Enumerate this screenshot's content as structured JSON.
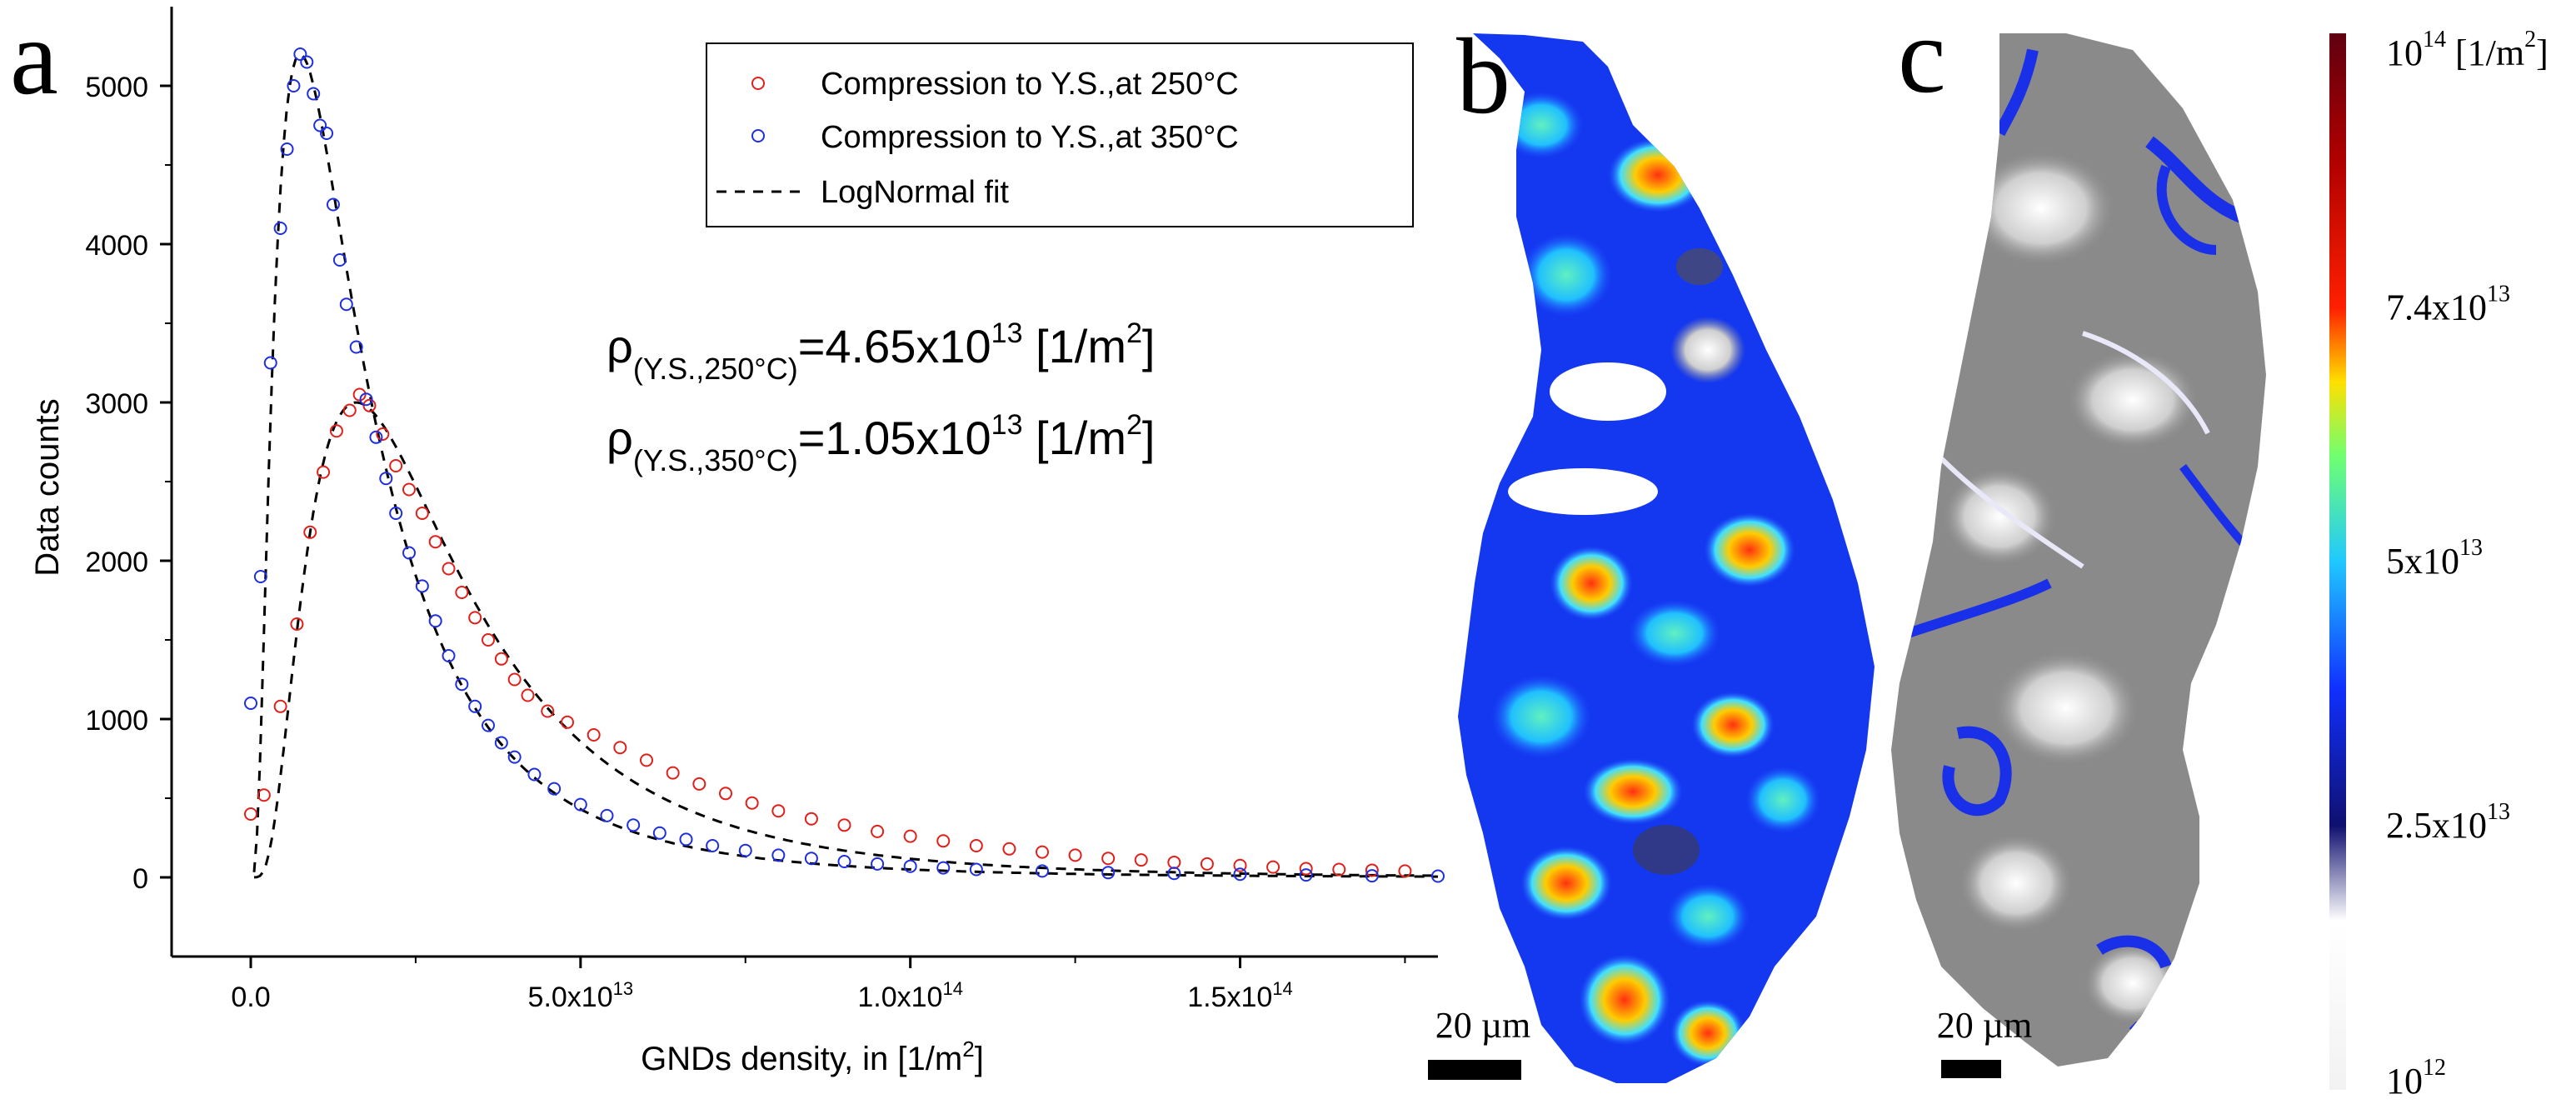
{
  "panels": {
    "a": {
      "letter": "a"
    },
    "b": {
      "letter": "b",
      "scalebar_label": "20 µm"
    },
    "c": {
      "letter": "c",
      "scalebar_label": "20 µm"
    }
  },
  "colors": {
    "red_series": "#e0201a",
    "blue_series": "#1f2fe0",
    "fit_line": "#000000"
  },
  "annotations": {
    "rho_250": {
      "symbol": "ρ",
      "sub": "(Y.S.,250°C)",
      "eq": "=4.65x10",
      "exp": "13",
      "unit1": " [1/m",
      "unit_exp": "2",
      "unit2": "]"
    },
    "rho_350": {
      "symbol": "ρ",
      "sub": "(Y.S.,350°C)",
      "eq": "=1.05x10",
      "exp": "13",
      "unit1": " [1/m",
      "unit_exp": "2",
      "unit2": "]"
    }
  },
  "colorbar": {
    "labels": [
      {
        "base": "10",
        "exp": "14",
        "suffix": " [1/m",
        "suffix_exp": "2",
        "suffix_end": "]",
        "fraction": 1.0
      },
      {
        "base": "7.4x10",
        "exp": "13",
        "suffix": "",
        "suffix_exp": "",
        "suffix_end": "",
        "fraction": 0.74
      },
      {
        "base": "5x10",
        "exp": "13",
        "suffix": "",
        "suffix_exp": "",
        "suffix_end": "",
        "fraction": 0.5
      },
      {
        "base": "2.5x10",
        "exp": "13",
        "suffix": "",
        "suffix_exp": "",
        "suffix_end": "",
        "fraction": 0.25
      },
      {
        "base": "10",
        "exp": "12",
        "suffix": "",
        "suffix_exp": "",
        "suffix_end": "",
        "fraction": 0.0
      }
    ]
  },
  "chart_data": {
    "type": "scatter",
    "xlabel": "GNDs density, in [1/m",
    "xlabel_exp": "2",
    "xlabel_end": "]",
    "ylabel": "Data counts",
    "xlim": [
      -12000000000000.0,
      180000000000000.0
    ],
    "ylim": [
      -500,
      5500
    ],
    "yticks": [
      0,
      1000,
      2000,
      3000,
      4000,
      5000
    ],
    "xticks": [
      {
        "value": 0,
        "label": "0.0",
        "exp": ""
      },
      {
        "value": 50000000000000.0,
        "label": "5.0x10",
        "exp": "13"
      },
      {
        "value": 100000000000000.0,
        "label": "1.0x10",
        "exp": "14"
      },
      {
        "value": 150000000000000.0,
        "label": "1.5x10",
        "exp": "14"
      }
    ],
    "legend_position": "top-right",
    "series": [
      {
        "name": "Compression to Y.S.,at 250°C",
        "color": "#e0201a",
        "marker": "open-circle",
        "x": [
          0.0,
          2000000000000.0,
          4500000000000.0,
          7000000000000.0,
          9000000000000.0,
          11000000000000.0,
          13000000000000.0,
          15000000000000.0,
          16500000000000.0,
          18000000000000.0,
          20000000000000.0,
          22000000000000.0,
          24000000000000.0,
          26000000000000.0,
          28000000000000.0,
          30000000000000.0,
          32000000000000.0,
          34000000000000.0,
          36000000000000.0,
          38000000000000.0,
          40000000000000.0,
          42000000000000.0,
          45000000000000.0,
          48000000000000.0,
          52000000000000.0,
          56000000000000.0,
          60000000000000.0,
          64000000000000.0,
          68000000000000.0,
          72000000000000.0,
          76000000000000.0,
          80000000000000.0,
          85000000000000.0,
          90000000000000.0,
          95000000000000.0,
          100000000000000.0,
          105000000000000.0,
          110000000000000.0,
          115000000000000.0,
          120000000000000.0,
          125000000000000.0,
          130000000000000.0,
          135000000000000.0,
          140000000000000.0,
          145000000000000.0,
          150000000000000.0,
          155000000000000.0,
          160000000000000.0,
          165000000000000.0,
          170000000000000.0,
          175000000000000.0
        ],
        "values": [
          400,
          520,
          1080,
          1600,
          2180,
          2560,
          2820,
          2950,
          3050,
          2980,
          2800,
          2600,
          2450,
          2300,
          2120,
          1950,
          1800,
          1640,
          1500,
          1380,
          1250,
          1150,
          1050,
          980,
          900,
          820,
          740,
          660,
          590,
          530,
          470,
          420,
          370,
          330,
          290,
          260,
          230,
          200,
          180,
          160,
          140,
          120,
          110,
          95,
          85,
          75,
          65,
          55,
          50,
          45,
          40
        ]
      },
      {
        "name": "Compression to Y.S.,at 350°C",
        "color": "#1f2fe0",
        "marker": "open-circle",
        "x": [
          0.0,
          1500000000000.0,
          3000000000000.0,
          4500000000000.0,
          5500000000000.0,
          6500000000000.0,
          7500000000000.0,
          8500000000000.0,
          9500000000000.0,
          10500000000000.0,
          11500000000000.0,
          12500000000000.0,
          13500000000000.0,
          14500000000000.0,
          16000000000000.0,
          17500000000000.0,
          19000000000000.0,
          20500000000000.0,
          22000000000000.0,
          24000000000000.0,
          26000000000000.0,
          28000000000000.0,
          30000000000000.0,
          32000000000000.0,
          34000000000000.0,
          36000000000000.0,
          38000000000000.0,
          40000000000000.0,
          43000000000000.0,
          46000000000000.0,
          50000000000000.0,
          54000000000000.0,
          58000000000000.0,
          62000000000000.0,
          66000000000000.0,
          70000000000000.0,
          75000000000000.0,
          80000000000000.0,
          85000000000000.0,
          90000000000000.0,
          95000000000000.0,
          100000000000000.0,
          105000000000000.0,
          110000000000000.0,
          120000000000000.0,
          130000000000000.0,
          140000000000000.0,
          150000000000000.0,
          160000000000000.0,
          170000000000000.0,
          180000000000000.0
        ],
        "values": [
          1100,
          1900,
          3250,
          4100,
          4600,
          5000,
          5200,
          5150,
          4950,
          4750,
          4700,
          4250,
          3900,
          3620,
          3350,
          3020,
          2780,
          2520,
          2300,
          2050,
          1840,
          1620,
          1400,
          1220,
          1080,
          960,
          850,
          760,
          650,
          560,
          460,
          390,
          330,
          280,
          240,
          200,
          170,
          140,
          120,
          100,
          85,
          70,
          60,
          50,
          40,
          30,
          25,
          20,
          15,
          10,
          8
        ]
      },
      {
        "name": "LogNormal fit",
        "color": "#000000",
        "marker": "dashed-line",
        "x": [],
        "values": []
      }
    ]
  }
}
